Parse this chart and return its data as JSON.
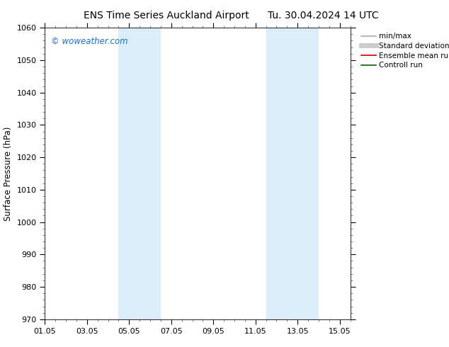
{
  "title_left": "ENS Time Series Auckland Airport",
  "title_right": "Tu. 30.04.2024 14 UTC",
  "ylabel": "Surface Pressure (hPa)",
  "ylim": [
    970,
    1060
  ],
  "yticks": [
    970,
    980,
    990,
    1000,
    1010,
    1020,
    1030,
    1040,
    1050,
    1060
  ],
  "xtick_labels": [
    "01.05",
    "03.05",
    "05.05",
    "07.05",
    "09.05",
    "11.05",
    "13.05",
    "15.05"
  ],
  "xtick_positions": [
    0,
    2,
    4,
    6,
    8,
    10,
    12,
    14
  ],
  "xmin": 0,
  "xmax": 14.5,
  "shaded_bands": [
    {
      "x_start": 3.5,
      "x_end": 5.5,
      "color": "#daedf8"
    },
    {
      "x_start": 10.5,
      "x_end": 13.0,
      "color": "#daedf8"
    }
  ],
  "watermark": "© woweather.com",
  "watermark_color": "#1a6ecc",
  "legend_items": [
    {
      "label": "min/max",
      "color": "#aaaaaa",
      "lw": 1.2
    },
    {
      "label": "Standard deviation",
      "color": "#cccccc",
      "lw": 5
    },
    {
      "label": "Ensemble mean run",
      "color": "#cc0000",
      "lw": 1.2
    },
    {
      "label": "Controll run",
      "color": "#006600",
      "lw": 1.2
    }
  ],
  "bg_color": "#ffffff",
  "plot_bg_color": "#ffffff",
  "title_fontsize": 10,
  "tick_fontsize": 8,
  "ylabel_fontsize": 8.5,
  "legend_fontsize": 7.5
}
